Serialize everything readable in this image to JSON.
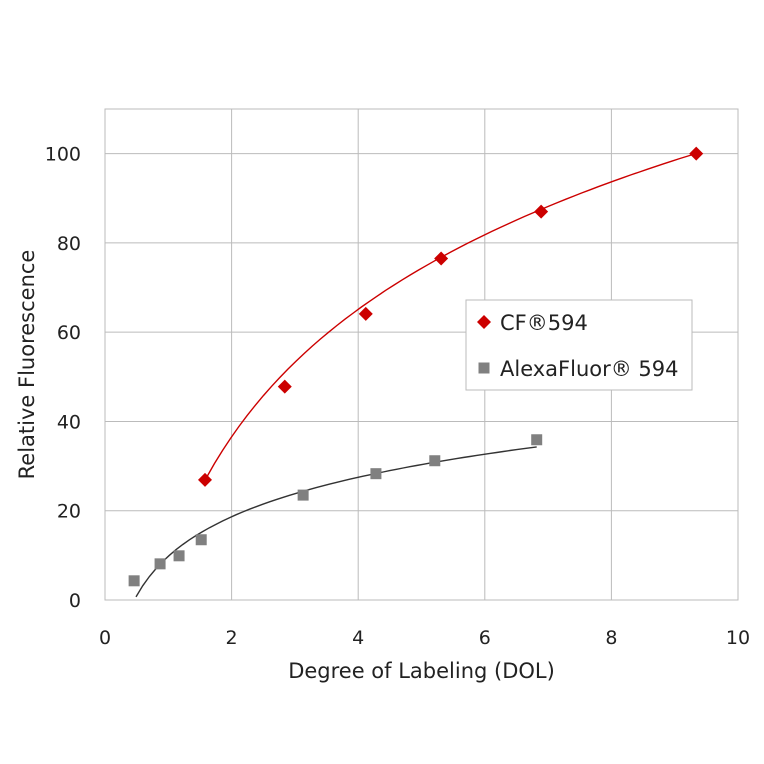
{
  "chart_data": {
    "type": "scatter",
    "title": "",
    "xlabel": "Degree of Labeling (DOL)",
    "ylabel": "Relative Fluorescence",
    "xlim": [
      0,
      10
    ],
    "ylim": [
      0,
      110
    ],
    "xticks": [
      0,
      2,
      4,
      6,
      8,
      10
    ],
    "yticks": [
      0,
      20,
      40,
      60,
      80,
      100
    ],
    "grid": true,
    "legend_placement": "center-right",
    "series": [
      {
        "name": "CF®594",
        "color": "#cc0000",
        "marker": "diamond",
        "x": [
          1.58,
          2.84,
          4.12,
          5.31,
          6.89,
          9.34
        ],
        "y": [
          26.9,
          47.8,
          64.1,
          76.5,
          87.0,
          100.0
        ],
        "trendline": {
          "type": "log",
          "a": 8.0,
          "b": 41.2,
          "xrange": [
            1.6,
            9.34
          ]
        }
      },
      {
        "name": "AlexaFluor® 594",
        "color": "#808080",
        "marker": "square",
        "x": [
          0.46,
          0.87,
          1.17,
          1.52,
          3.13,
          4.28,
          5.21,
          6.82
        ],
        "y": [
          4.3,
          8.1,
          9.9,
          13.5,
          23.5,
          28.3,
          31.2,
          35.9
        ],
        "trendline": {
          "type": "log",
          "a": 9.8,
          "b": 12.76,
          "xrange": [
            0.49,
            6.82
          ]
        }
      }
    ]
  }
}
